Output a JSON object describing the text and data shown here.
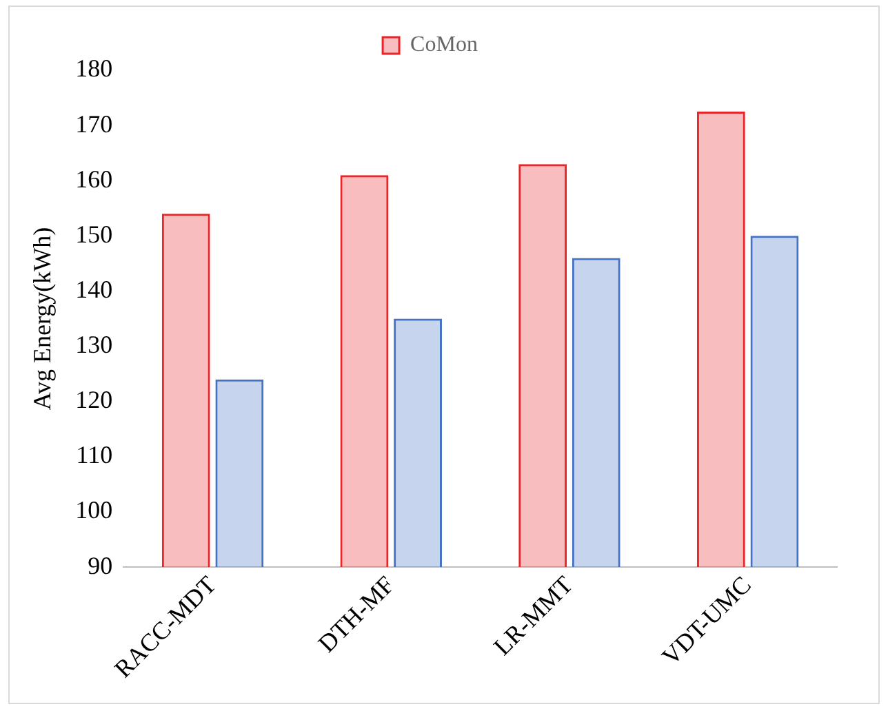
{
  "chart_data": {
    "type": "bar",
    "ylabel": "Avg Energy(kWh)",
    "categories": [
      "RACC-MDT",
      "DTH-MF",
      "LR-MMT",
      "VDT-UMC"
    ],
    "series": [
      {
        "name": "CoMon",
        "color": "#e8262a",
        "values": [
          154,
          161,
          163,
          172.5
        ]
      },
      {
        "color": "#4472c4",
        "values": [
          124,
          135,
          146,
          150
        ]
      }
    ],
    "ylim": [
      90,
      180
    ],
    "yticks": [
      90,
      100,
      110,
      120,
      130,
      140,
      150,
      160,
      170,
      180
    ],
    "grid": false,
    "legend": "top"
  }
}
